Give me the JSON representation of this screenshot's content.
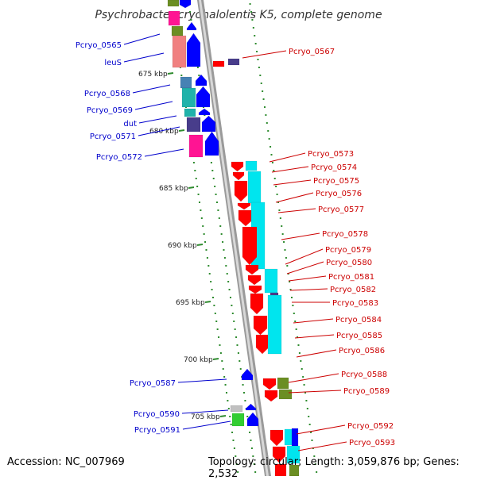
{
  "title": "Psychrobacter cryohalolentis K5, complete genome",
  "footer": {
    "accession": "Accession: NC_007969",
    "topology": "Topology: circular; Length: 3,059,876 bp; Genes: 2,532"
  },
  "colors": {
    "backbone": "#999999",
    "ticks": "#2e8b2e",
    "reverse_label": "#0000cc",
    "forward_label": "#cc0000",
    "blue": "#0000ff",
    "red": "#ff0000",
    "cyan": "#00e5ee",
    "pink": "#ff1493",
    "light_pink": "#f08080",
    "olive": "#6b8e23",
    "steel": "#4682b4",
    "teal": "#20b2aa",
    "navy": "#483d8b",
    "green": "#32cd32",
    "gray": "#c0c0c0"
  },
  "position_marks": [
    "675 kbp",
    "680 kbp",
    "685 kbp",
    "690 kbp",
    "695 kbp",
    "700 kbp",
    "705 kbp"
  ],
  "reverse_genes": [
    "Pcryo_0565",
    "leuS",
    "Pcryo_0568",
    "Pcryo_0569",
    "dut",
    "Pcryo_0571",
    "Pcryo_0572",
    "Pcryo_0587",
    "Pcryo_0590",
    "Pcryo_0591"
  ],
  "forward_genes": [
    "Pcryo_0567",
    "Pcryo_0573",
    "Pcryo_0574",
    "Pcryo_0575",
    "Pcryo_0576",
    "Pcryo_0577",
    "Pcryo_0578",
    "Pcryo_0579",
    "Pcryo_0580",
    "Pcryo_0581",
    "Pcryo_0582",
    "Pcryo_0583",
    "Pcryo_0584",
    "Pcryo_0585",
    "Pcryo_0586",
    "Pcryo_0588",
    "Pcryo_0589",
    "Pcryo_0592",
    "Pcryo_0593"
  ]
}
